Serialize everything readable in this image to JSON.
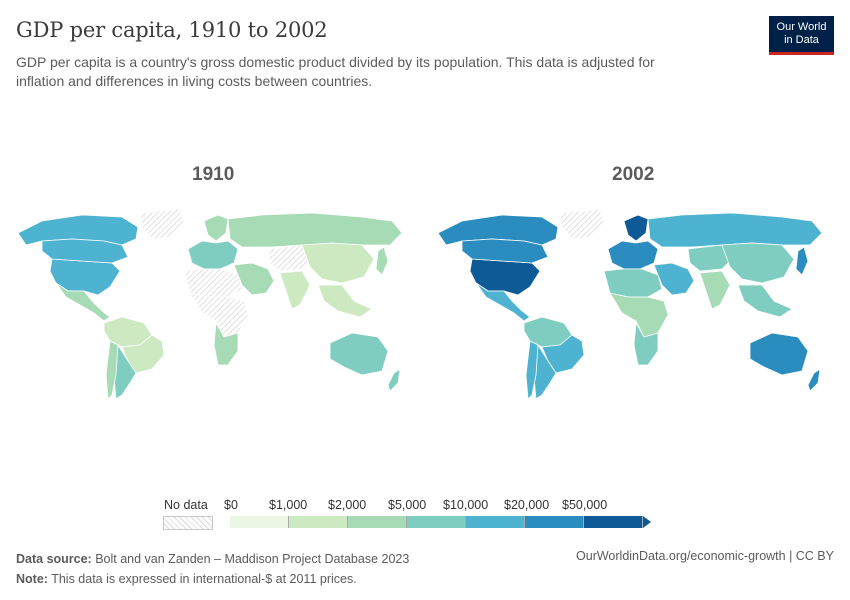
{
  "header": {
    "title": "GDP per capita, 1910 to 2002",
    "subtitle": "GDP per capita is a country's gross domestic product divided by its population. This data is adjusted for inflation and differences in living costs between countries.",
    "logo_line1": "Our World",
    "logo_line2": "in Data"
  },
  "maps": [
    {
      "year": "1910",
      "regions": [
        {
          "name": "north-america",
          "bin": 4
        },
        {
          "name": "usa",
          "bin": 4
        },
        {
          "name": "canada",
          "bin": 4
        },
        {
          "name": "mexico-central-america",
          "bin": 2
        },
        {
          "name": "greenland",
          "bin": -1
        },
        {
          "name": "south-america-north",
          "bin": 1
        },
        {
          "name": "brazil",
          "bin": 1
        },
        {
          "name": "argentina",
          "bin": 3
        },
        {
          "name": "chile",
          "bin": 2
        },
        {
          "name": "europe-west",
          "bin": 3
        },
        {
          "name": "scandinavia",
          "bin": 2
        },
        {
          "name": "russia",
          "bin": 2
        },
        {
          "name": "north-africa",
          "bin": -1
        },
        {
          "name": "sub-saharan-africa",
          "bin": -1
        },
        {
          "name": "southern-africa",
          "bin": 2
        },
        {
          "name": "middle-east",
          "bin": 2
        },
        {
          "name": "central-asia",
          "bin": -1
        },
        {
          "name": "india",
          "bin": 1
        },
        {
          "name": "china",
          "bin": 1
        },
        {
          "name": "southeast-asia",
          "bin": 1
        },
        {
          "name": "japan",
          "bin": 2
        },
        {
          "name": "australia",
          "bin": 3
        },
        {
          "name": "new-zealand",
          "bin": 3
        }
      ]
    },
    {
      "year": "2002",
      "regions": [
        {
          "name": "north-america",
          "bin": 5
        },
        {
          "name": "usa",
          "bin": 6
        },
        {
          "name": "canada",
          "bin": 5
        },
        {
          "name": "mexico-central-america",
          "bin": 4
        },
        {
          "name": "greenland",
          "bin": -1
        },
        {
          "name": "south-america-north",
          "bin": 3
        },
        {
          "name": "brazil",
          "bin": 4
        },
        {
          "name": "argentina",
          "bin": 4
        },
        {
          "name": "chile",
          "bin": 4
        },
        {
          "name": "europe-west",
          "bin": 5
        },
        {
          "name": "scandinavia",
          "bin": 6
        },
        {
          "name": "russia",
          "bin": 4
        },
        {
          "name": "north-africa",
          "bin": 3
        },
        {
          "name": "sub-saharan-africa",
          "bin": 2
        },
        {
          "name": "southern-africa",
          "bin": 3
        },
        {
          "name": "middle-east",
          "bin": 4
        },
        {
          "name": "central-asia",
          "bin": 3
        },
        {
          "name": "india",
          "bin": 2
        },
        {
          "name": "china",
          "bin": 3
        },
        {
          "name": "southeast-asia",
          "bin": 3
        },
        {
          "name": "japan",
          "bin": 5
        },
        {
          "name": "australia",
          "bin": 5
        },
        {
          "name": "new-zealand",
          "bin": 5
        }
      ]
    }
  ],
  "legend": {
    "no_data_label": "No data",
    "bins": [
      {
        "label": "$0",
        "color": "#ebf6e4"
      },
      {
        "label": "$1,000",
        "color": "#cde9c1"
      },
      {
        "label": "$2,000",
        "color": "#a6dbb6"
      },
      {
        "label": "$5,000",
        "color": "#7ecdc0"
      },
      {
        "label": "$10,000",
        "color": "#4db3d0"
      },
      {
        "label": "$20,000",
        "color": "#2b8cbf"
      },
      {
        "label": "$50,000",
        "color": "#0e5a97"
      }
    ],
    "no_data_color": "#efefef"
  },
  "footer": {
    "source_label": "Data source:",
    "source_text": "Bolt and van Zanden – Maddison Project Database 2023",
    "note_label": "Note:",
    "note_text": "This data is expressed in international-$ at 2011 prices.",
    "url": "OurWorldinData.org/economic-growth | CC BY"
  }
}
